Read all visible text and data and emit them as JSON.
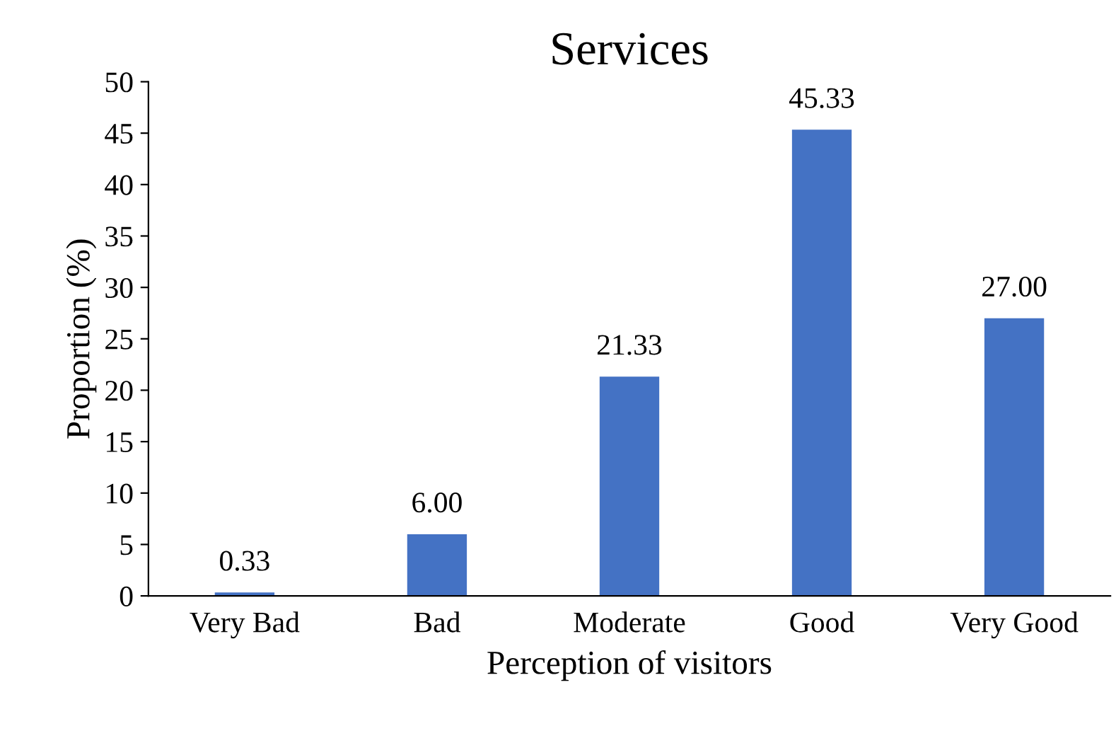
{
  "chart_data": {
    "type": "bar",
    "title": "Services",
    "xlabel": "Perception of visitors",
    "ylabel": "Proportion (%)",
    "categories": [
      "Very Bad",
      "Bad",
      "Moderate",
      "Good",
      "Very Good"
    ],
    "values": [
      0.33,
      6.0,
      21.33,
      45.33,
      27.0
    ],
    "value_labels": [
      "0.33",
      "6.00",
      "21.33",
      "45.33",
      "27.00"
    ],
    "color": "#4472c4",
    "ylim": [
      0,
      50
    ],
    "yticks": [
      0,
      5,
      10,
      15,
      20,
      25,
      30,
      35,
      40,
      45,
      50
    ],
    "grid": false
  }
}
